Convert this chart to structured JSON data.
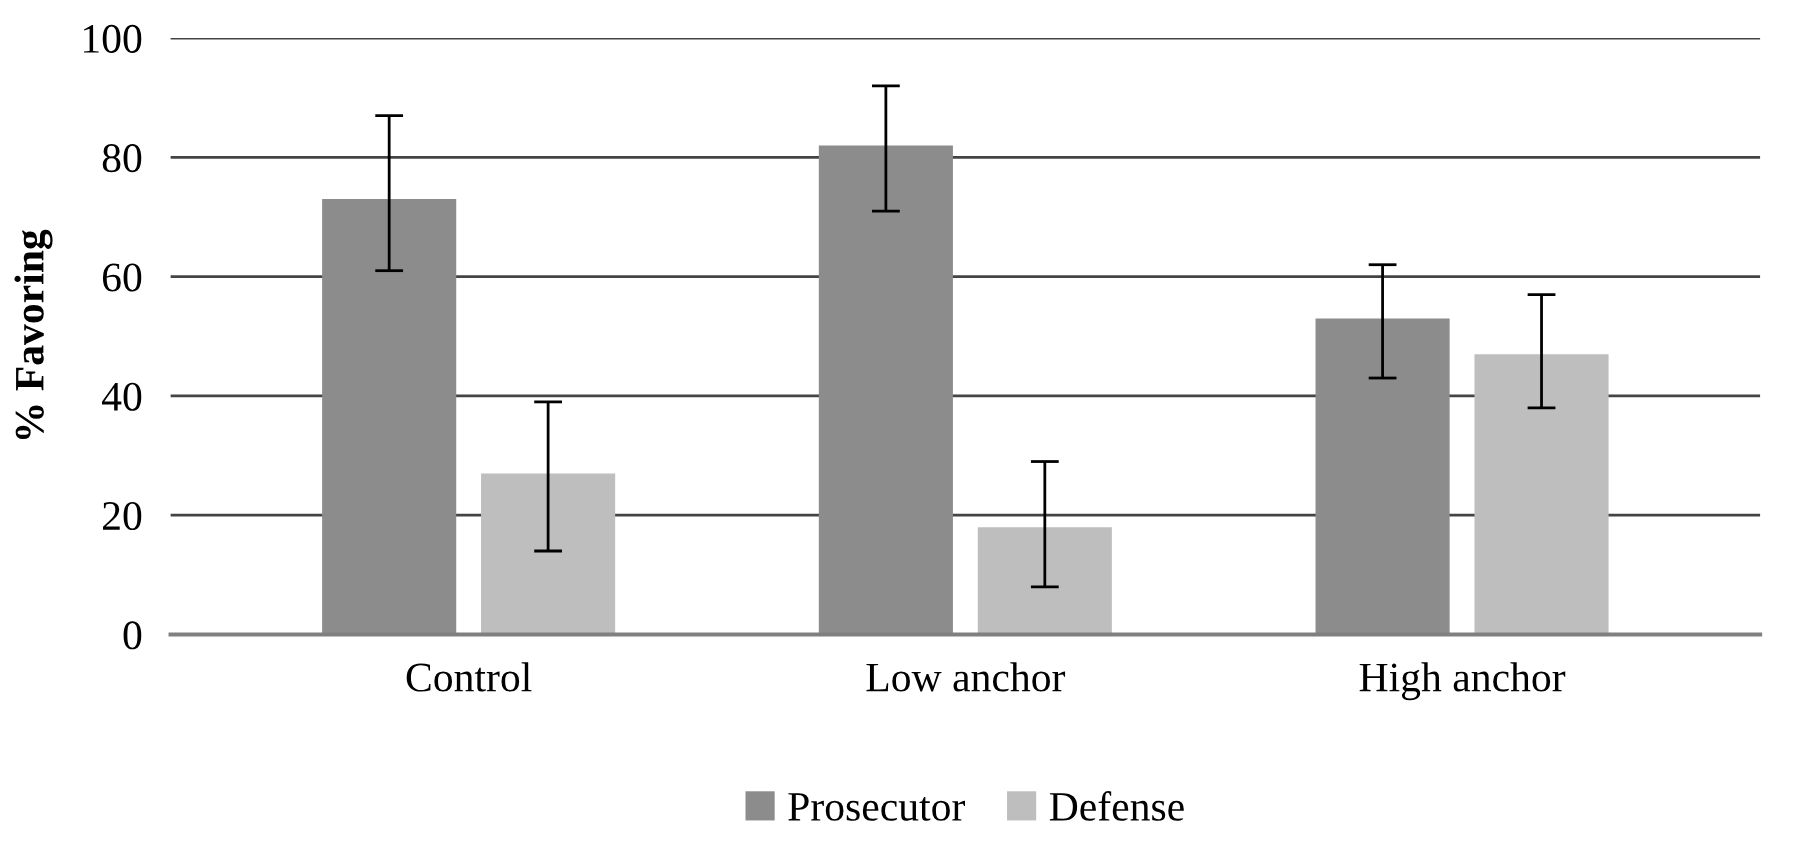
{
  "chart_data": {
    "type": "bar",
    "ylabel": "% Favoring",
    "categories": [
      "Control",
      "Low anchor",
      "High anchor"
    ],
    "series": [
      {
        "name": "Prosecutor",
        "color": "#8c8c8c",
        "values": [
          73,
          82,
          53
        ],
        "errors": [
          [
            61,
            87
          ],
          [
            71,
            92
          ],
          [
            43,
            62
          ]
        ]
      },
      {
        "name": "Defense",
        "color": "#bebebe",
        "values": [
          27,
          18,
          47
        ],
        "errors": [
          [
            14,
            39
          ],
          [
            8,
            29
          ],
          [
            38,
            57
          ]
        ]
      }
    ],
    "ylim": [
      0,
      100
    ],
    "yticks": [
      0,
      20,
      40,
      60,
      80,
      100
    ],
    "grid": "y",
    "legend": "bottom"
  }
}
